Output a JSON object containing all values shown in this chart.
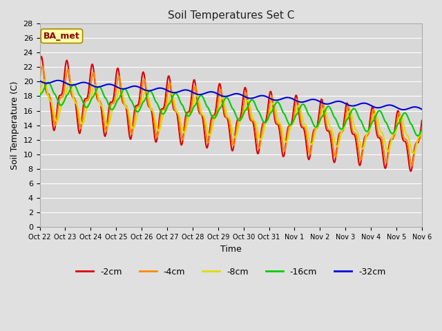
{
  "title": "Soil Temperatures Set C",
  "xlabel": "Time",
  "ylabel": "Soil Temperature (C)",
  "ylim": [
    0,
    28
  ],
  "yticks": [
    0,
    2,
    4,
    6,
    8,
    10,
    12,
    14,
    16,
    18,
    20,
    22,
    24,
    26,
    28
  ],
  "xtick_labels": [
    "Oct 22",
    "Oct 23",
    "Oct 24",
    "Oct 25",
    "Oct 26",
    "Oct 27",
    "Oct 28",
    "Oct 29",
    "Oct 30",
    "Oct 31",
    "Nov 1",
    "Nov 2",
    "Nov 3",
    "Nov 4",
    "Nov 5",
    "Nov 6"
  ],
  "colors": {
    "-2cm": "#dd0000",
    "-4cm": "#ff8800",
    "-8cm": "#dddd00",
    "-16cm": "#00cc00",
    "-32cm": "#0000dd"
  },
  "annotation_text": "BA_met",
  "annotation_bg": "#ffffaa",
  "annotation_border": "#aa8800",
  "annotation_color": "#880000",
  "fig_bg": "#e0e0e0",
  "plot_bg": "#d8d8d8",
  "grid_color": "#ffffff",
  "legend_entries": [
    "-2cm",
    "-4cm",
    "-8cm",
    "-16cm",
    "-32cm"
  ]
}
